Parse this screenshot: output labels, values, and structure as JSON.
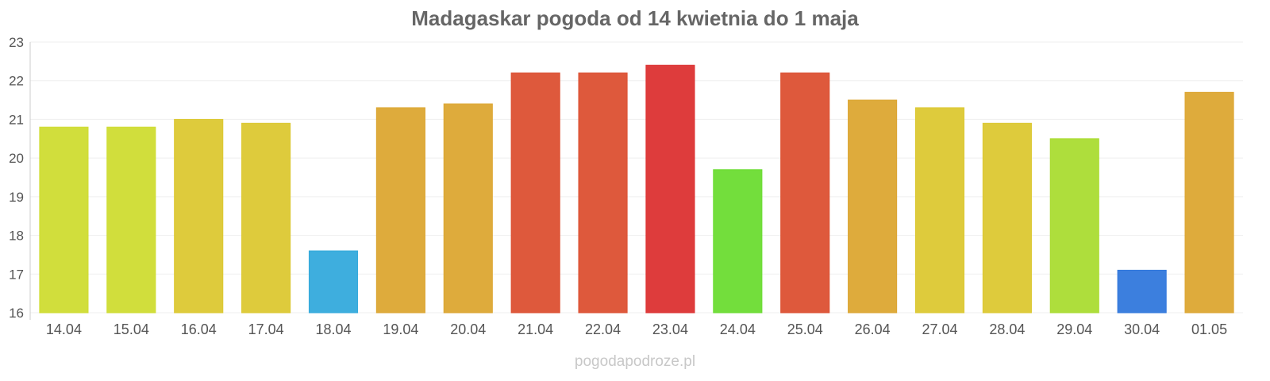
{
  "chart_data": {
    "type": "bar",
    "title": "Madagaskar pogoda od 14 kwietnia do 1 maja",
    "xlabel": "",
    "ylabel": "",
    "ylim": [
      16,
      23
    ],
    "yticks": [
      "16",
      "17",
      "18",
      "19",
      "20",
      "21",
      "22",
      "23"
    ],
    "categories": [
      "14.04",
      "15.04",
      "16.04",
      "17.04",
      "18.04",
      "19.04",
      "20.04",
      "21.04",
      "22.04",
      "23.04",
      "24.04",
      "25.04",
      "26.04",
      "27.04",
      "28.04",
      "29.04",
      "30.04",
      "01.05"
    ],
    "values": [
      20.8,
      20.8,
      21.0,
      20.9,
      17.6,
      21.3,
      21.4,
      22.2,
      22.2,
      22.4,
      19.7,
      22.2,
      21.5,
      21.3,
      20.9,
      20.5,
      17.1,
      21.7
    ],
    "colors": [
      "#cfdc32",
      "#cfdc32",
      "#dcc832",
      "#dcc832",
      "#34aadc",
      "#dca632",
      "#dca632",
      "#dc5032",
      "#dc5032",
      "#dc3232",
      "#6bdc32",
      "#dc5032",
      "#dca632",
      "#dcc832",
      "#dcc832",
      "#aadc32",
      "#3278dc",
      "#dca632"
    ],
    "grid": true,
    "legend": "none"
  },
  "footer": {
    "credit": "pogodapodroze.pl"
  }
}
